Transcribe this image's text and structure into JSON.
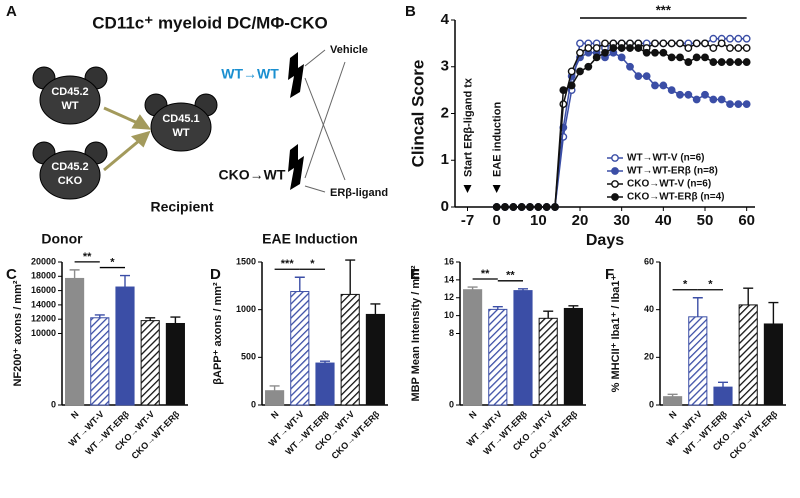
{
  "panel_labels": [
    "A",
    "B",
    "C",
    "D",
    "E",
    "F"
  ],
  "diagram": {
    "title": "CD11c⁺ myeloid DC/MΦ-CKO",
    "donor_wt": [
      "CD45.2",
      "WT"
    ],
    "donor_cko": [
      "CD45.2",
      "CKO"
    ],
    "recipient_mouse": [
      "CD45.1",
      "WT"
    ],
    "donor": "Donor",
    "recipient": "Recipient",
    "group_wt": "WT→WT",
    "group_cko": "CKO→WT",
    "vehicle": "Vehicle",
    "ligand": "ERβ-ligand",
    "induction": "EAE Induction"
  },
  "chart_data": [
    {
      "type": "line",
      "ylabel": "Clincal Score",
      "xlabel": "Days",
      "xlim": [
        -10,
        62
      ],
      "xticks": [
        -7,
        0,
        10,
        20,
        30,
        40,
        50,
        60
      ],
      "ylim": [
        0,
        4
      ],
      "yticks": [
        0,
        1,
        2,
        3,
        4
      ],
      "annotations": [
        "***",
        "Start ERβ-ligand tx",
        "EAE induction"
      ],
      "legend": "lower right",
      "x": [
        0,
        2,
        4,
        6,
        8,
        10,
        12,
        14,
        16,
        18,
        20,
        22,
        24,
        26,
        28,
        30,
        32,
        34,
        36,
        38,
        40,
        42,
        44,
        46,
        48,
        50,
        52,
        54,
        56,
        58,
        60
      ],
      "series": [
        {
          "name": "WT→WT-V (n=6)",
          "color": "#3b4ea6",
          "filled": false,
          "values": [
            0,
            0,
            0,
            0,
            0,
            0,
            0,
            0,
            1.5,
            2.5,
            3.5,
            3.5,
            3.5,
            3.4,
            3.5,
            3.5,
            3.5,
            3.5,
            3.5,
            3.5,
            3.5,
            3.5,
            3.5,
            3.5,
            3.5,
            3.5,
            3.6,
            3.6,
            3.6,
            3.6,
            3.6
          ]
        },
        {
          "name": "WT→WT-ERβ (n=8)",
          "color": "#3b4ea6",
          "filled": true,
          "values": [
            0,
            0,
            0,
            0,
            0,
            0,
            0,
            0,
            1.7,
            2.8,
            3.2,
            3.3,
            3.3,
            3.2,
            3.3,
            3.2,
            3.0,
            2.8,
            2.8,
            2.6,
            2.6,
            2.5,
            2.4,
            2.4,
            2.3,
            2.4,
            2.3,
            2.3,
            2.2,
            2.2,
            2.2
          ]
        },
        {
          "name": "CKO→WT-V (n=6)",
          "color": "#111111",
          "filled": false,
          "values": [
            0,
            0,
            0,
            0,
            0,
            0,
            0,
            0,
            2.2,
            2.9,
            3.3,
            3.4,
            3.4,
            3.5,
            3.5,
            3.5,
            3.5,
            3.5,
            3.4,
            3.5,
            3.5,
            3.5,
            3.5,
            3.4,
            3.5,
            3.5,
            3.4,
            3.5,
            3.4,
            3.4,
            3.4
          ]
        },
        {
          "name": "CKO→WT-ERβ (n=4)",
          "color": "#111111",
          "filled": true,
          "values": [
            0,
            0,
            0,
            0,
            0,
            0,
            0,
            0,
            2.5,
            2.6,
            2.9,
            3.0,
            3.2,
            3.3,
            3.4,
            3.4,
            3.4,
            3.4,
            3.3,
            3.3,
            3.3,
            3.2,
            3.2,
            3.1,
            3.2,
            3.2,
            3.1,
            3.1,
            3.1,
            3.1,
            3.1
          ]
        }
      ]
    },
    {
      "type": "bar",
      "ylabel": "NF200⁺ axons / mm²",
      "categories": [
        "N",
        "WT→WT-V",
        "WT→WT-ERβ",
        "CKO→WT-V",
        "CKO→WT-ERβ"
      ],
      "values": [
        17700,
        12200,
        16500,
        11800,
        11400
      ],
      "errors": [
        1200,
        400,
        1600,
        400,
        900
      ],
      "colors": [
        "#8c8c8c",
        "#3b4ea6",
        "#3b4ea6",
        "#111111",
        "#111111"
      ],
      "hatch": [
        false,
        true,
        false,
        true,
        false
      ],
      "ylim": [
        0,
        20000
      ],
      "yticks": [
        0,
        10000,
        12000,
        14000,
        16000,
        18000,
        20000
      ],
      "annotations": [
        "**",
        "*"
      ]
    },
    {
      "type": "bar",
      "ylabel": "βAPP⁺ axons / mm²",
      "categories": [
        "N",
        "WT→WT-V",
        "WT→WT-ERβ",
        "CKO→WT-V",
        "CKO→WT-ERβ"
      ],
      "values": [
        150,
        1190,
        440,
        1160,
        950
      ],
      "errors": [
        50,
        150,
        20,
        360,
        110
      ],
      "colors": [
        "#8c8c8c",
        "#3b4ea6",
        "#3b4ea6",
        "#111111",
        "#111111"
      ],
      "hatch": [
        false,
        true,
        false,
        true,
        false
      ],
      "ylim": [
        0,
        1500
      ],
      "yticks": [
        0,
        500,
        1000,
        1500
      ],
      "annotations": [
        "***",
        "*"
      ]
    },
    {
      "type": "bar",
      "ylabel": "MBP Mean Intensity / mm²",
      "categories": [
        "N",
        "WT→WT-V",
        "WT→WT-ERβ",
        "CKO→WT-V",
        "CKO→WT-ERβ"
      ],
      "values": [
        12.9,
        10.7,
        12.8,
        9.7,
        10.8
      ],
      "errors": [
        0.3,
        0.3,
        0.2,
        0.8,
        0.3
      ],
      "colors": [
        "#8c8c8c",
        "#3b4ea6",
        "#3b4ea6",
        "#111111",
        "#111111"
      ],
      "hatch": [
        false,
        true,
        false,
        true,
        false
      ],
      "ylim": [
        0,
        16
      ],
      "yticks": [
        0,
        8,
        10,
        12,
        14,
        16
      ],
      "annotations": [
        "**",
        "**"
      ]
    },
    {
      "type": "bar",
      "ylabel": "% MHCII⁺ Iba1⁺ / Iba1⁺",
      "categories": [
        "N",
        "WT→WT-V",
        "WT→WT-ERβ",
        "CKO→WT-V",
        "CKO→WT-ERβ"
      ],
      "values": [
        3.5,
        37,
        7.5,
        42,
        34
      ],
      "errors": [
        1,
        8,
        2,
        7,
        9
      ],
      "colors": [
        "#8c8c8c",
        "#3b4ea6",
        "#3b4ea6",
        "#111111",
        "#111111"
      ],
      "hatch": [
        false,
        true,
        false,
        true,
        false
      ],
      "ylim": [
        0,
        60
      ],
      "yticks": [
        0,
        20,
        40,
        60
      ],
      "annotations": [
        "*",
        "*"
      ]
    }
  ]
}
